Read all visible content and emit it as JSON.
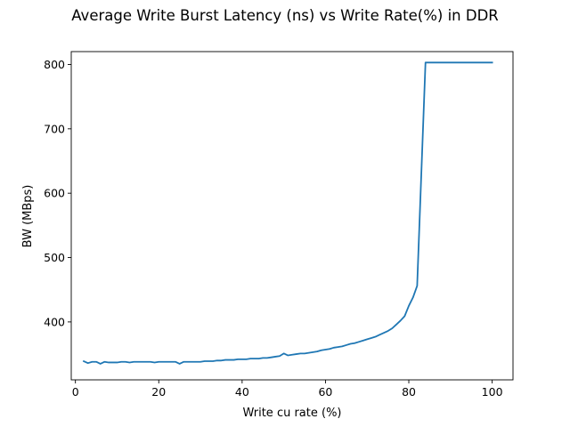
{
  "chart_data": {
    "type": "line",
    "title": "Average Write Burst Latency (ns) vs Write Rate(%) in DDR",
    "xlabel": "Write cu rate (%)",
    "ylabel": "BW (MBps)",
    "xlim": [
      -1,
      105
    ],
    "ylim": [
      310,
      820
    ],
    "xticks": [
      0,
      20,
      40,
      60,
      80,
      100
    ],
    "yticks": [
      400,
      500,
      600,
      700,
      800
    ],
    "grid": false,
    "line_color": "#1f77b4",
    "series": [
      {
        "x": [
          2,
          3,
          4,
          5,
          6,
          7,
          8,
          9,
          10,
          11,
          12,
          13,
          14,
          15,
          16,
          17,
          18,
          19,
          20,
          21,
          22,
          23,
          24,
          25,
          26,
          27,
          28,
          29,
          30,
          31,
          32,
          33,
          34,
          35,
          36,
          37,
          38,
          39,
          40,
          41,
          42,
          43,
          44,
          45,
          46,
          47,
          48,
          49,
          50,
          51,
          52,
          53,
          54,
          55,
          56,
          57,
          58,
          59,
          60,
          61,
          62,
          63,
          64,
          65,
          66,
          67,
          68,
          69,
          70,
          71,
          72,
          73,
          74,
          75,
          76,
          77,
          78,
          79,
          80,
          81,
          82,
          83,
          84,
          85,
          86,
          87,
          88,
          89,
          90,
          91,
          92,
          93,
          94,
          95,
          96,
          97,
          98,
          99,
          100
        ],
        "values": [
          339,
          336,
          338,
          338,
          335,
          338,
          337,
          337,
          337,
          338,
          338,
          337,
          338,
          338,
          338,
          338,
          338,
          337,
          338,
          338,
          338,
          338,
          338,
          335,
          338,
          338,
          338,
          338,
          338,
          339,
          339,
          339,
          340,
          340,
          341,
          341,
          341,
          342,
          342,
          342,
          343,
          343,
          343,
          344,
          344,
          345,
          346,
          347,
          351,
          348,
          349,
          350,
          351,
          351,
          352,
          353,
          354,
          356,
          357,
          358,
          360,
          361,
          362,
          364,
          366,
          367,
          369,
          371,
          373,
          375,
          377,
          380,
          383,
          386,
          390,
          396,
          402,
          409,
          425,
          438,
          456,
          630,
          803,
          803,
          803,
          803,
          803,
          803,
          803,
          803,
          803,
          803,
          803,
          803,
          803,
          803,
          803,
          803,
          803
        ]
      }
    ]
  }
}
